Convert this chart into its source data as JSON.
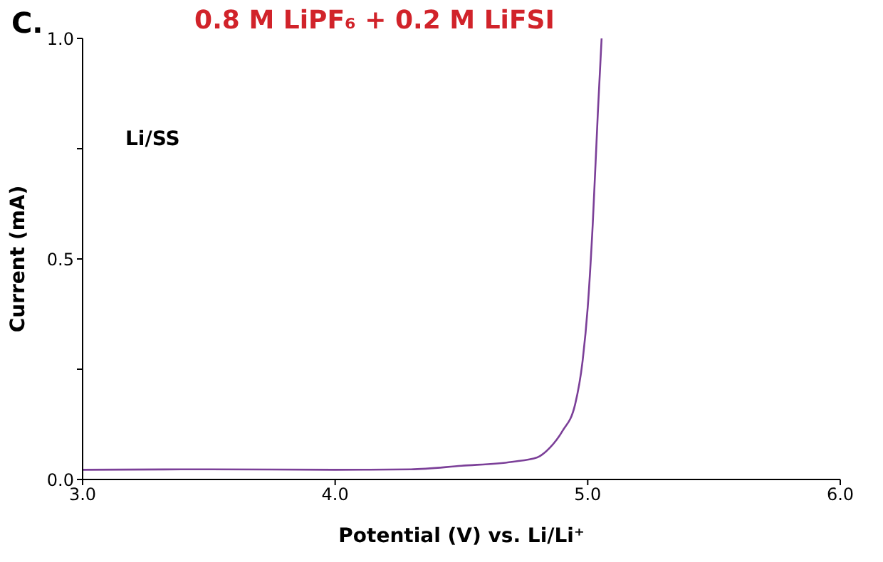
{
  "chart_data": {
    "type": "line",
    "title": "0.8 M LiPF₆ + 0.2 M LiFSI",
    "xlabel": "Potential (V) vs. Li/Li⁺",
    "ylabel": "Current (mA)",
    "annotations": [
      "C.",
      "Li/SS"
    ],
    "x": [
      3.0,
      3.5,
      4.0,
      4.3,
      4.5,
      4.7,
      4.8,
      4.85,
      4.9,
      4.95,
      4.98,
      5.0,
      5.02,
      5.04,
      5.055
    ],
    "series": [
      {
        "color": "#7b3f98",
        "values": [
          0.022,
          0.023,
          0.022,
          0.023,
          0.031,
          0.04,
          0.05,
          0.072,
          0.11,
          0.17,
          0.27,
          0.39,
          0.58,
          0.83,
          1.0
        ]
      }
    ],
    "xlim": [
      3,
      6
    ],
    "xticks": [
      {
        "value": 3,
        "label": "3.0"
      },
      {
        "value": 4,
        "label": "4.0"
      },
      {
        "value": 5,
        "label": "5.0"
      },
      {
        "value": 6,
        "label": "6.0"
      }
    ],
    "ylim": [
      0,
      1
    ],
    "yticks": [
      {
        "value": 0,
        "label": "0.0"
      },
      {
        "value": 0.25,
        "label": null
      },
      {
        "value": 0.5,
        "label": "0.5"
      },
      {
        "value": 0.75,
        "label": null
      },
      {
        "value": 1,
        "label": "1.0"
      }
    ],
    "marker": "none",
    "line_style": "solid"
  }
}
